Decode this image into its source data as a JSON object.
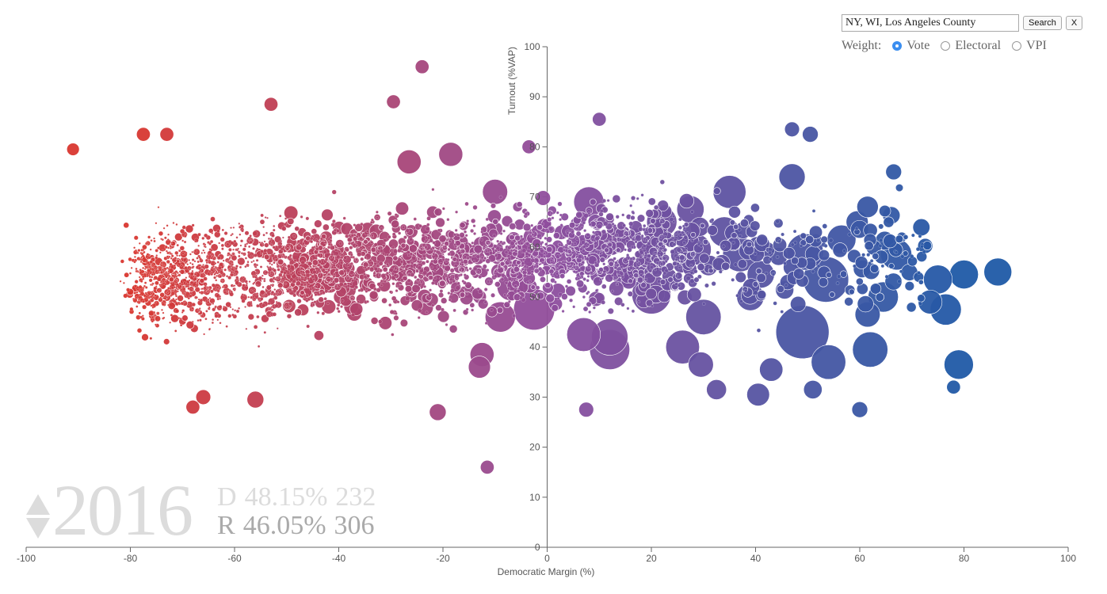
{
  "search": {
    "value": "NY, WI, Los Angeles County",
    "search_label": "Search",
    "clear_label": "X"
  },
  "weight": {
    "label": "Weight:",
    "options": [
      "Vote",
      "Electoral",
      "VPI"
    ],
    "selected": "Vote"
  },
  "summary": {
    "year": "2016",
    "dem": {
      "letter": "D",
      "pct": "48.15%",
      "ev": "232"
    },
    "rep": {
      "letter": "R",
      "pct": "46.05%",
      "ev": "306"
    }
  },
  "colors": {
    "rep": "#d9372f",
    "mid": "#8f4e9e",
    "dem": "#1f5aa6"
  },
  "chart_data": {
    "type": "scatter",
    "xlabel": "Democratic Margin (%)",
    "ylabel": "Turnout (%VAP)",
    "xlim": [
      -100,
      100
    ],
    "ylim": [
      0,
      100
    ],
    "xticks": [
      -100,
      -80,
      -60,
      -40,
      -20,
      0,
      20,
      40,
      60,
      80,
      100
    ],
    "yticks": [
      0,
      10,
      20,
      30,
      40,
      50,
      60,
      70,
      80,
      90,
      100
    ],
    "grid": false,
    "points": [
      {
        "x": 49,
        "y": 43,
        "size": 1.0
      },
      {
        "x": 53.5,
        "y": 53.5,
        "size": 0.72
      },
      {
        "x": -2.5,
        "y": 47.5,
        "size": 0.58
      },
      {
        "x": 12,
        "y": 39.5,
        "size": 0.55
      },
      {
        "x": 20,
        "y": 50.5,
        "size": 0.52
      },
      {
        "x": 12,
        "y": 42,
        "size": 0.45
      },
      {
        "x": 49.5,
        "y": 59,
        "size": 0.45
      },
      {
        "x": 54,
        "y": 37,
        "size": 0.4
      },
      {
        "x": 62,
        "y": 39.5,
        "size": 0.42
      },
      {
        "x": 30,
        "y": 46,
        "size": 0.42
      },
      {
        "x": 35,
        "y": 71,
        "size": 0.36
      },
      {
        "x": 26,
        "y": 40,
        "size": 0.38
      },
      {
        "x": 7,
        "y": 42.5,
        "size": 0.38
      },
      {
        "x": 37,
        "y": 58.5,
        "size": 0.4
      },
      {
        "x": 76.5,
        "y": 47.5,
        "size": 0.32
      },
      {
        "x": 79,
        "y": 36.5,
        "size": 0.28
      },
      {
        "x": 67,
        "y": 58.5,
        "size": 0.32
      },
      {
        "x": 86.5,
        "y": 55,
        "size": 0.25
      },
      {
        "x": 80,
        "y": 54.5,
        "size": 0.27
      },
      {
        "x": 75,
        "y": 53.5,
        "size": 0.27
      },
      {
        "x": 64.5,
        "y": 50,
        "size": 0.3
      },
      {
        "x": 56.5,
        "y": 61.5,
        "size": 0.27
      },
      {
        "x": 47,
        "y": 74,
        "size": 0.22
      },
      {
        "x": 41,
        "y": 54.5,
        "size": 0.24
      },
      {
        "x": 39,
        "y": 50,
        "size": 0.24
      },
      {
        "x": 34,
        "y": 63,
        "size": 0.3
      },
      {
        "x": 28.5,
        "y": 59.5,
        "size": 0.32
      },
      {
        "x": 22,
        "y": 65,
        "size": 0.3
      },
      {
        "x": 27.5,
        "y": 67.5,
        "size": 0.24
      },
      {
        "x": 10,
        "y": 60,
        "size": 0.28
      },
      {
        "x": 8,
        "y": 69,
        "size": 0.3
      },
      {
        "x": -9,
        "y": 46,
        "size": 0.3
      },
      {
        "x": -7,
        "y": 52,
        "size": 0.24
      },
      {
        "x": -10,
        "y": 71,
        "size": 0.2
      },
      {
        "x": 2,
        "y": 57,
        "size": 0.28
      },
      {
        "x": 15,
        "y": 55,
        "size": 0.28
      },
      {
        "x": 29.5,
        "y": 36.5,
        "size": 0.2
      },
      {
        "x": 40.5,
        "y": 30.5,
        "size": 0.16
      },
      {
        "x": 43,
        "y": 35.5,
        "size": 0.17
      },
      {
        "x": 61.5,
        "y": 46.5,
        "size": 0.2
      },
      {
        "x": 73.5,
        "y": 49,
        "size": 0.18
      },
      {
        "x": 61.5,
        "y": 68,
        "size": 0.14
      },
      {
        "x": 59.5,
        "y": 65,
        "size": 0.15
      },
      {
        "x": -26.5,
        "y": 77,
        "size": 0.18
      },
      {
        "x": -18.5,
        "y": 78.5,
        "size": 0.18
      },
      {
        "x": -13,
        "y": 36,
        "size": 0.15
      },
      {
        "x": -12.5,
        "y": 38.5,
        "size": 0.18
      },
      {
        "x": 60,
        "y": 27.5,
        "size": 0.07
      },
      {
        "x": 66.5,
        "y": 75,
        "size": 0.07
      },
      {
        "x": 47,
        "y": 83.5,
        "size": 0.06
      },
      {
        "x": 50.5,
        "y": 82.5,
        "size": 0.07
      },
      {
        "x": 10,
        "y": 85.5,
        "size": 0.05
      },
      {
        "x": 7.5,
        "y": 27.5,
        "size": 0.06
      },
      {
        "x": -24,
        "y": 96,
        "size": 0.05
      },
      {
        "x": -29.5,
        "y": 89,
        "size": 0.05
      },
      {
        "x": -53,
        "y": 88.5,
        "size": 0.05
      },
      {
        "x": -11.5,
        "y": 16,
        "size": 0.05
      },
      {
        "x": -3.5,
        "y": 80,
        "size": 0.05
      },
      {
        "x": -91,
        "y": 79.5,
        "size": 0.04
      },
      {
        "x": -73,
        "y": 82.5,
        "size": 0.05
      },
      {
        "x": -77.5,
        "y": 82.5,
        "size": 0.05
      },
      {
        "x": -68,
        "y": 28,
        "size": 0.05
      },
      {
        "x": -66,
        "y": 30,
        "size": 0.06
      },
      {
        "x": -56,
        "y": 29.5,
        "size": 0.08
      },
      {
        "x": -21,
        "y": 27,
        "size": 0.08
      },
      {
        "x": 78,
        "y": 32,
        "size": 0.05
      },
      {
        "x": 51,
        "y": 31.5,
        "size": 0.1
      },
      {
        "x": 32.5,
        "y": 31.5,
        "size": 0.12
      }
    ]
  }
}
